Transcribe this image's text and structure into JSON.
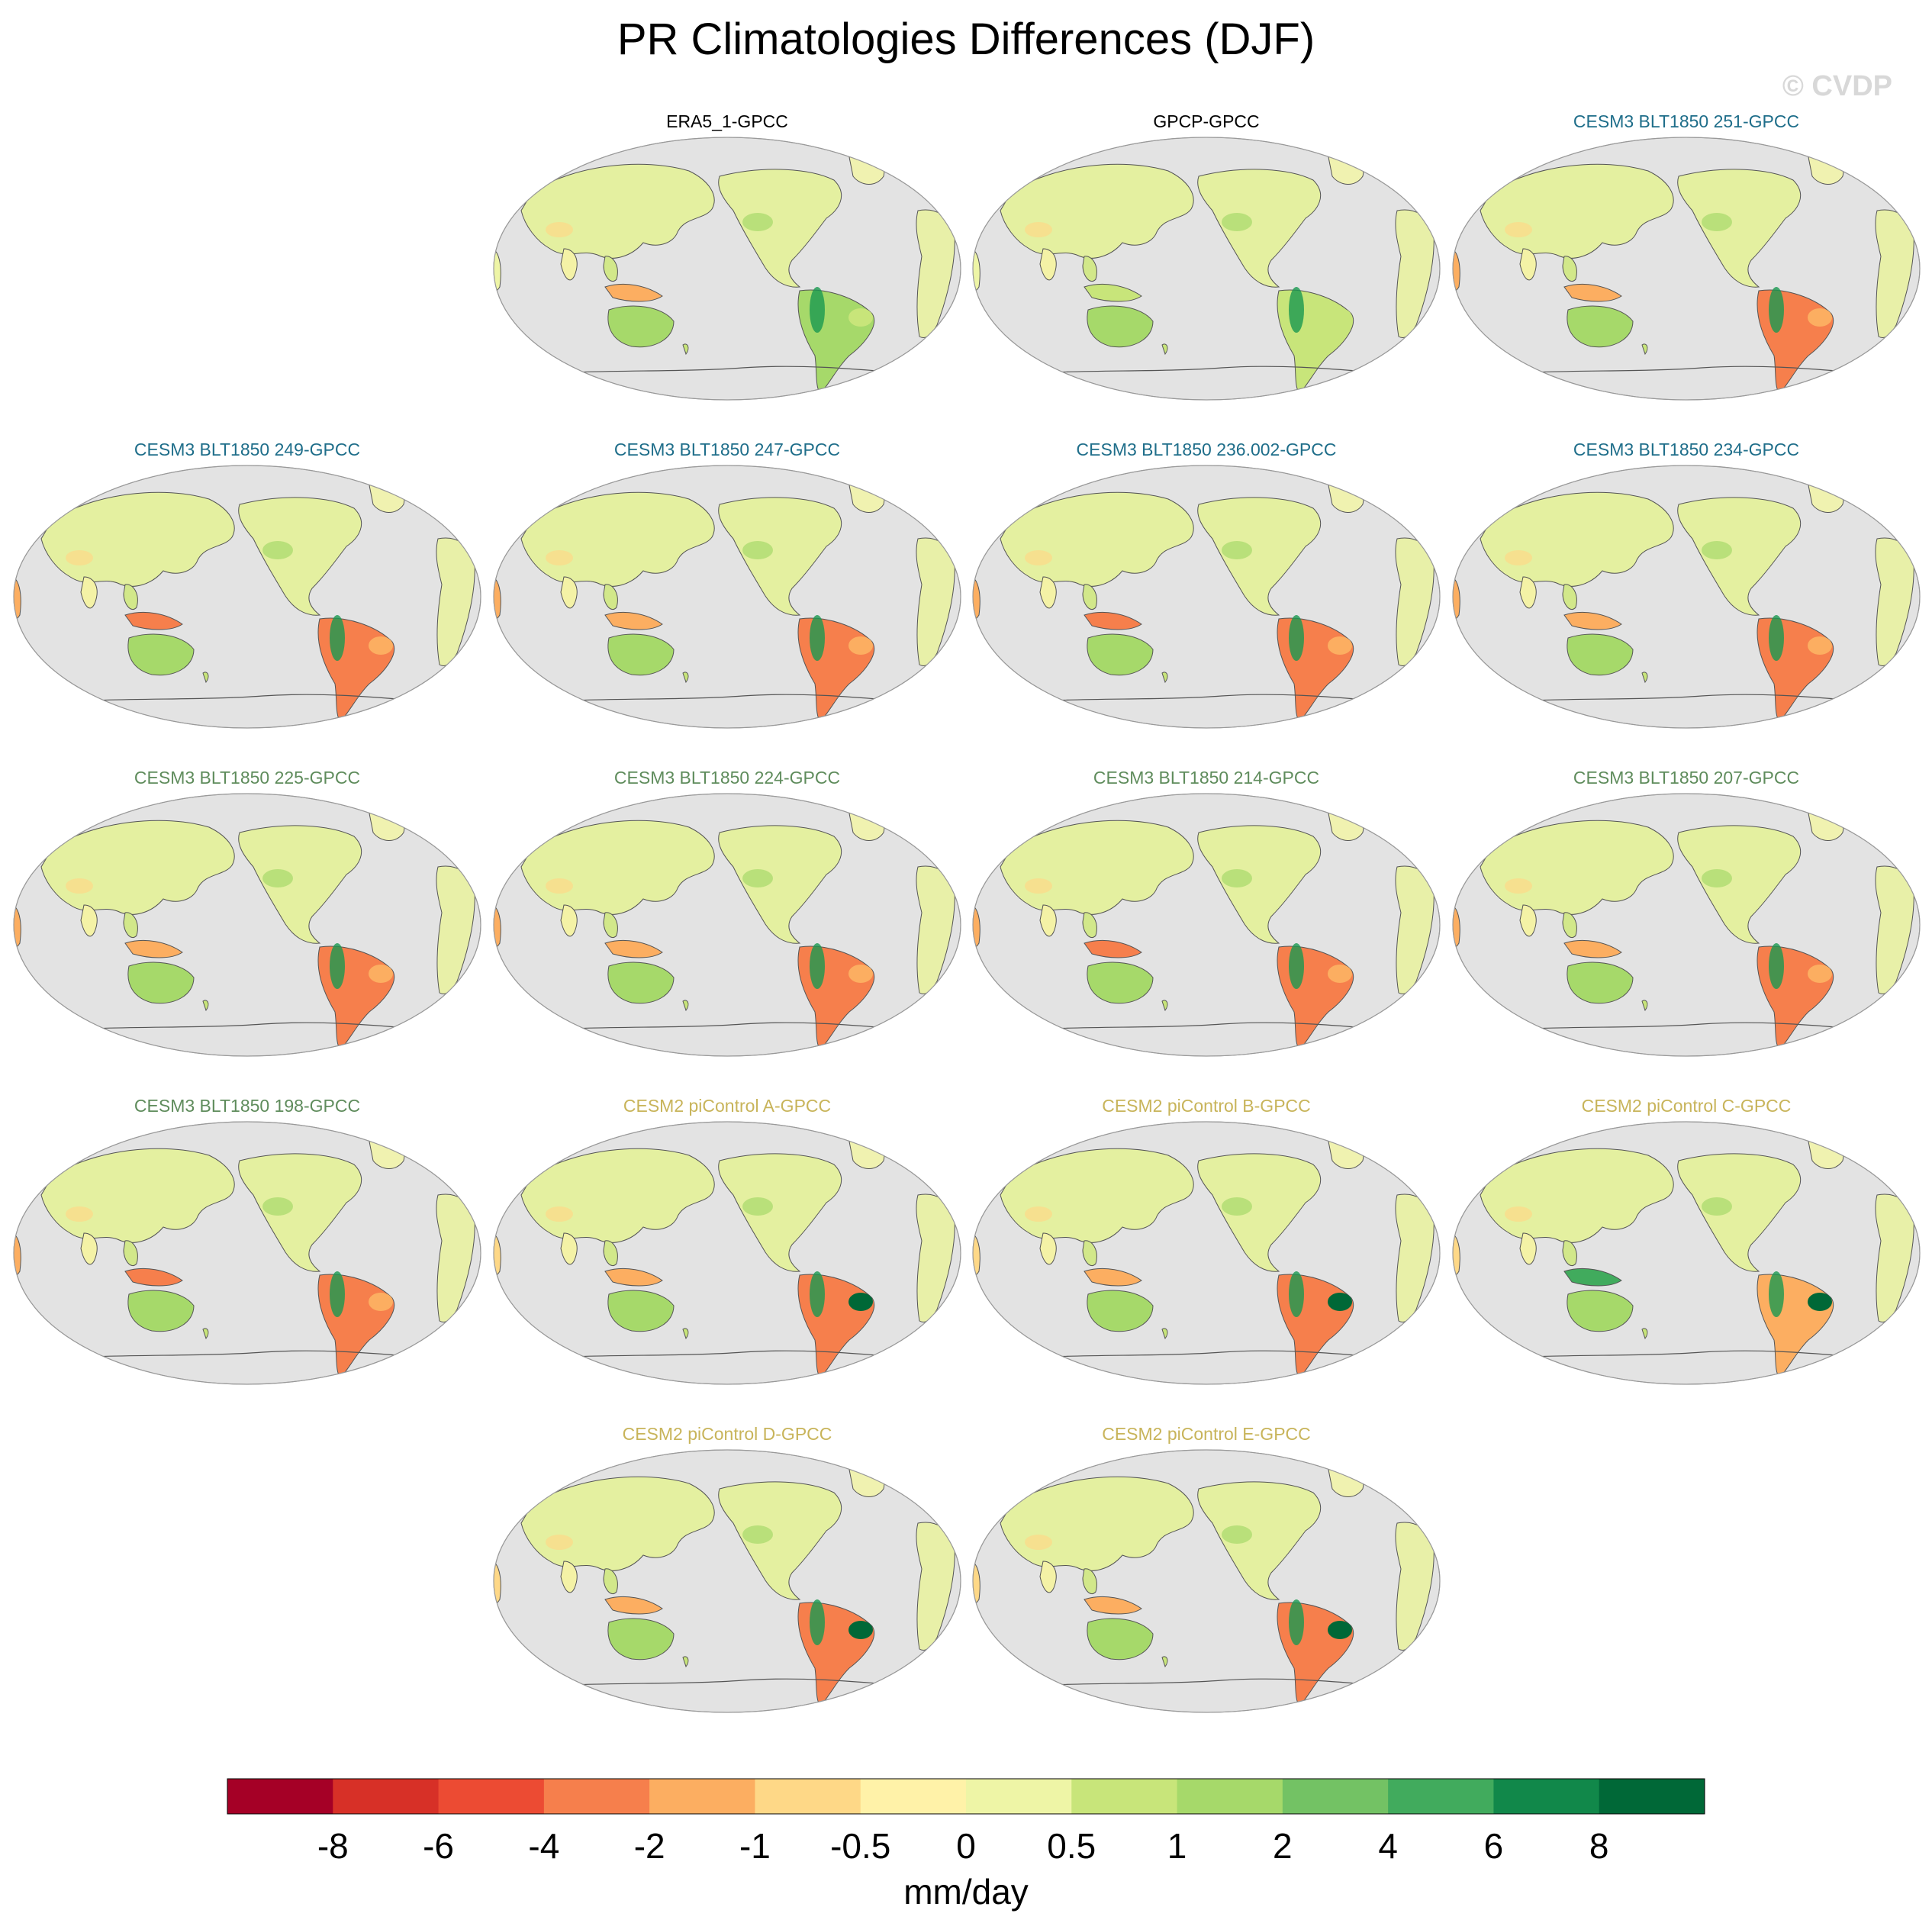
{
  "title": "PR Climatologies Differences (DJF)",
  "watermark": "© CVDP",
  "colors": {
    "ocean": "#e3e3e3",
    "coast": "#555555",
    "obs_title": "#000000",
    "cesm3_high": "#1f6e8a",
    "cesm3_low": "#5f8c5c",
    "cesm2": "#c8b45a"
  },
  "chart_data": {
    "type": "heatmap",
    "projection": "Robinson, centered on Pacific",
    "units": "mm/day",
    "colorbar": {
      "levels": [
        "-8",
        "-6",
        "-4",
        "-2",
        "-1",
        "-0.5",
        "0",
        "0.5",
        "1",
        "2",
        "4",
        "6",
        "8"
      ],
      "colors": [
        "#a50026",
        "#d73027",
        "#ec4b33",
        "#f67f4c",
        "#fcae61",
        "#fed887",
        "#fff2a8",
        "#eef5a6",
        "#c8e57a",
        "#a6d96a",
        "#73c264",
        "#41ab5d",
        "#11884a",
        "#006837"
      ]
    },
    "panels": [
      {
        "title": "ERA5_1-GPCC",
        "group": "obs",
        "amazon": "+1",
        "maritime": "-2",
        "africa": "0",
        "brazil_ne": "0.5"
      },
      {
        "title": "GPCP-GPCC",
        "group": "obs",
        "amazon": "0.5",
        "maritime": "0.5",
        "africa": "0",
        "brazil_ne": "0.5"
      },
      {
        "title": "CESM3 BLT1850 251-GPCC",
        "group": "cesm3_high",
        "amazon": "-4",
        "maritime": "-2",
        "africa": "-2",
        "brazil_ne": "-2"
      },
      {
        "title": "CESM3 BLT1850 249-GPCC",
        "group": "cesm3_high",
        "amazon": "-4",
        "maritime": "-4",
        "africa": "-2",
        "brazil_ne": "-2"
      },
      {
        "title": "CESM3 BLT1850 247-GPCC",
        "group": "cesm3_high",
        "amazon": "-4",
        "maritime": "-2",
        "africa": "-2",
        "brazil_ne": "-2"
      },
      {
        "title": "CESM3 BLT1850 236.002-GPCC",
        "group": "cesm3_high",
        "amazon": "-4",
        "maritime": "-4",
        "africa": "-2",
        "brazil_ne": "-2"
      },
      {
        "title": "CESM3 BLT1850 234-GPCC",
        "group": "cesm3_high",
        "amazon": "-4",
        "maritime": "-2",
        "africa": "-2",
        "brazil_ne": "-2"
      },
      {
        "title": "CESM3 BLT1850 225-GPCC",
        "group": "cesm3_low",
        "amazon": "-4",
        "maritime": "-2",
        "africa": "-2",
        "brazil_ne": "-2"
      },
      {
        "title": "CESM3 BLT1850 224-GPCC",
        "group": "cesm3_low",
        "amazon": "-4",
        "maritime": "-2",
        "africa": "-2",
        "brazil_ne": "-2"
      },
      {
        "title": "CESM3 BLT1850 214-GPCC",
        "group": "cesm3_low",
        "amazon": "-4",
        "maritime": "-4",
        "africa": "-2",
        "brazil_ne": "-2"
      },
      {
        "title": "CESM3 BLT1850 207-GPCC",
        "group": "cesm3_low",
        "amazon": "-4",
        "maritime": "-2",
        "africa": "-2",
        "brazil_ne": "-2"
      },
      {
        "title": "CESM3 BLT1850 198-GPCC",
        "group": "cesm3_low",
        "amazon": "-4",
        "maritime": "-4",
        "africa": "-2",
        "brazil_ne": "-2"
      },
      {
        "title": "CESM2 piControl A-GPCC",
        "group": "cesm2",
        "amazon": "-4",
        "maritime": "-2",
        "africa": "-1",
        "brazil_ne": "8"
      },
      {
        "title": "CESM2 piControl B-GPCC",
        "group": "cesm2",
        "amazon": "-4",
        "maritime": "-2",
        "africa": "-1",
        "brazil_ne": "8"
      },
      {
        "title": "CESM2 piControl C-GPCC",
        "group": "cesm2",
        "amazon": "-2",
        "maritime": "4",
        "africa": "-1",
        "brazil_ne": "8"
      },
      {
        "title": "CESM2 piControl D-GPCC",
        "group": "cesm2",
        "amazon": "-4",
        "maritime": "-2",
        "africa": "-1",
        "brazil_ne": "8"
      },
      {
        "title": "CESM2 piControl E-GPCC",
        "group": "cesm2",
        "amazon": "-4",
        "maritime": "-2",
        "africa": "-1",
        "brazil_ne": "8"
      }
    ]
  }
}
